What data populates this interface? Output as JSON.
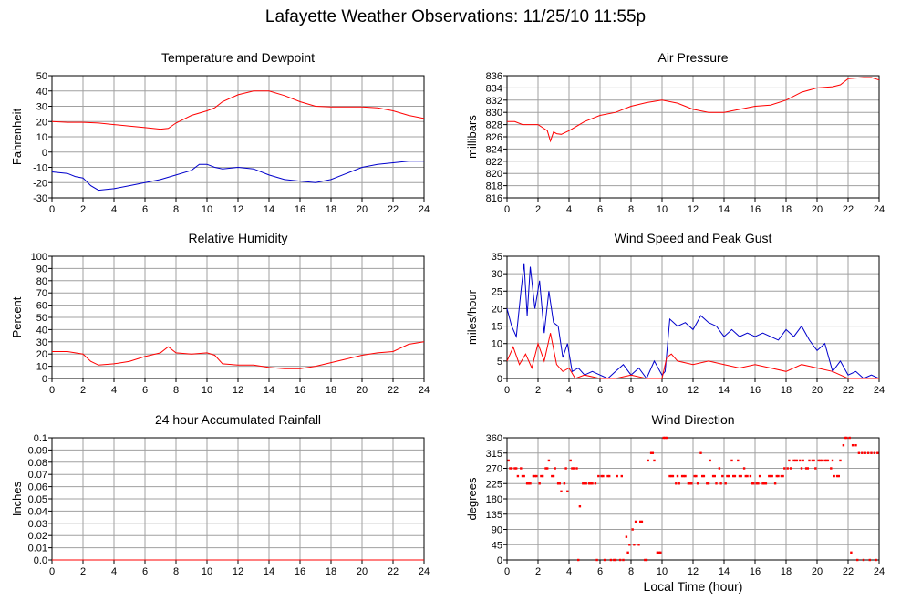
{
  "page": {
    "title": "Lafayette Weather Observations: 11/25/10 11:55p",
    "xaxis_title": "Local Time (hour)"
  },
  "colors": {
    "red": "#ff0000",
    "blue": "#0000cc",
    "grid": "#a0a0a0",
    "frame": "#000000"
  },
  "chart_data": [
    {
      "id": "temperature",
      "type": "line",
      "title": "Temperature and Dewpoint",
      "ylabel": "Fahrenheit",
      "xlim": [
        0,
        24
      ],
      "ylim": [
        -30,
        50
      ],
      "xticks": [
        0,
        2,
        4,
        6,
        8,
        10,
        12,
        14,
        16,
        18,
        20,
        22,
        24
      ],
      "yticks": [
        -30,
        -20,
        -10,
        0,
        10,
        20,
        30,
        40,
        50
      ],
      "grid": true,
      "series": [
        {
          "color": "#ff0000",
          "x": [
            0,
            1,
            2,
            3,
            4,
            5,
            6,
            7,
            7.5,
            8,
            9,
            10,
            10.5,
            11,
            12,
            13,
            14,
            15,
            16,
            17,
            18,
            19,
            20,
            21,
            22,
            23,
            24
          ],
          "y": [
            20,
            19.5,
            19.5,
            19,
            18,
            17,
            16,
            15,
            15.5,
            19,
            24,
            27,
            29,
            33,
            37.5,
            40,
            40,
            37,
            33,
            30,
            29.5,
            29.5,
            29.5,
            29,
            27,
            24,
            22
          ]
        },
        {
          "color": "#0000cc",
          "x": [
            0,
            1,
            1.5,
            2,
            2.5,
            3,
            4,
            5,
            6,
            7,
            8,
            9,
            9.5,
            10,
            10.5,
            11,
            12,
            13,
            14,
            15,
            16,
            17,
            18,
            19,
            20,
            21,
            22,
            23,
            24
          ],
          "y": [
            -13,
            -14,
            -16,
            -17,
            -22,
            -25,
            -24,
            -22,
            -20,
            -18,
            -15,
            -12,
            -8,
            -8,
            -10,
            -11,
            -10,
            -11,
            -15,
            -18,
            -19,
            -20,
            -18,
            -14,
            -10,
            -8,
            -7,
            -6,
            -6
          ]
        }
      ]
    },
    {
      "id": "pressure",
      "type": "line",
      "title": "Air Pressure",
      "ylabel": "millibars",
      "xlim": [
        0,
        24
      ],
      "ylim": [
        816,
        836
      ],
      "xticks": [
        0,
        2,
        4,
        6,
        8,
        10,
        12,
        14,
        16,
        18,
        20,
        22,
        24
      ],
      "yticks": [
        816,
        818,
        820,
        822,
        824,
        826,
        828,
        830,
        832,
        834,
        836
      ],
      "grid": true,
      "series": [
        {
          "color": "#ff0000",
          "x": [
            0,
            0.5,
            1,
            2,
            2.6,
            2.8,
            3,
            3.2,
            3.5,
            4,
            5,
            6,
            7,
            8,
            9,
            10,
            11,
            12,
            13,
            14,
            15,
            16,
            17,
            18,
            19,
            20,
            21,
            21.5,
            22,
            23,
            23.5,
            24
          ],
          "y": [
            828.5,
            828.5,
            828,
            828,
            827,
            825.3,
            826.8,
            826.5,
            826.4,
            827,
            828.5,
            829.5,
            830,
            831,
            831.6,
            832,
            831.5,
            830.5,
            830,
            830,
            830.5,
            831,
            831.2,
            832,
            833.3,
            834,
            834.2,
            834.5,
            835.5,
            835.7,
            835.7,
            835.3
          ]
        }
      ]
    },
    {
      "id": "humidity",
      "type": "line",
      "title": "Relative Humidity",
      "ylabel": "Percent",
      "xlim": [
        0,
        24
      ],
      "ylim": [
        0,
        100
      ],
      "xticks": [
        0,
        2,
        4,
        6,
        8,
        10,
        12,
        14,
        16,
        18,
        20,
        22,
        24
      ],
      "yticks": [
        0,
        10,
        20,
        30,
        40,
        50,
        60,
        70,
        80,
        90,
        100
      ],
      "grid": true,
      "series": [
        {
          "color": "#ff0000",
          "x": [
            0,
            1,
            2,
            2.5,
            3,
            4,
            5,
            6,
            7,
            7.5,
            8,
            9,
            10,
            10.5,
            11,
            12,
            13,
            14,
            15,
            16,
            17,
            18,
            19,
            20,
            21,
            22,
            23,
            24
          ],
          "y": [
            22,
            22,
            20,
            14,
            11,
            12,
            14,
            18,
            21,
            26,
            21,
            20,
            21,
            19,
            12,
            11,
            11,
            9,
            8,
            8,
            10,
            13,
            16,
            19,
            21,
            22,
            28,
            30
          ]
        }
      ]
    },
    {
      "id": "wind",
      "type": "line",
      "title": "Wind Speed and Peak Gust",
      "ylabel": "miles/hour",
      "xlim": [
        0,
        24
      ],
      "ylim": [
        0,
        35
      ],
      "xticks": [
        0,
        2,
        4,
        6,
        8,
        10,
        12,
        14,
        16,
        18,
        20,
        22,
        24
      ],
      "yticks": [
        0,
        5,
        10,
        15,
        20,
        25,
        30,
        35
      ],
      "grid": true,
      "series": [
        {
          "color": "#0000cc",
          "x": [
            0,
            0.3,
            0.6,
            0.9,
            1.1,
            1.3,
            1.5,
            1.8,
            2.1,
            2.4,
            2.7,
            3,
            3.3,
            3.6,
            3.9,
            4.2,
            4.6,
            5,
            5.5,
            6,
            6.5,
            7,
            7.5,
            8,
            8.5,
            9,
            9.5,
            10,
            10.2,
            10.5,
            11,
            11.5,
            12,
            12.5,
            13,
            13.5,
            14,
            14.5,
            15,
            15.5,
            16,
            16.5,
            17,
            17.5,
            18,
            18.5,
            19,
            19.5,
            20,
            20.5,
            21,
            21.5,
            22,
            22.5,
            23,
            23.5,
            24
          ],
          "y": [
            20,
            15,
            12,
            25,
            33,
            18,
            32,
            20,
            28,
            13,
            25,
            16,
            15,
            6,
            10,
            2,
            3,
            1,
            2,
            1,
            0,
            2,
            4,
            1,
            3,
            0,
            5,
            1,
            2,
            17,
            15,
            16,
            14,
            18,
            16,
            15,
            12,
            14,
            12,
            13,
            12,
            13,
            12,
            11,
            14,
            12,
            15,
            11,
            8,
            10,
            2,
            5,
            1,
            2,
            0,
            1,
            0
          ]
        },
        {
          "color": "#ff0000",
          "x": [
            0,
            0.4,
            0.8,
            1.2,
            1.6,
            2,
            2.4,
            2.8,
            3.2,
            3.6,
            4,
            4.4,
            5,
            6,
            7,
            8,
            9,
            10,
            10.3,
            10.6,
            11,
            12,
            13,
            14,
            15,
            16,
            17,
            18,
            19,
            20,
            21,
            22,
            23,
            24
          ],
          "y": [
            5,
            9,
            4,
            7,
            3,
            10,
            5,
            13,
            4,
            2,
            3,
            0,
            1,
            0,
            0,
            1,
            0,
            0,
            6,
            7,
            5,
            4,
            5,
            4,
            3,
            4,
            3,
            2,
            4,
            3,
            2,
            0,
            0,
            0
          ]
        }
      ]
    },
    {
      "id": "rainfall",
      "type": "line",
      "title": "24 hour Accumulated Rainfall",
      "ylabel": "Inches",
      "xlim": [
        0,
        24
      ],
      "ylim": [
        0,
        0.1
      ],
      "xticks": [
        0,
        2,
        4,
        6,
        8,
        10,
        12,
        14,
        16,
        18,
        20,
        22,
        24
      ],
      "yticks": [
        "0.0",
        "0.01",
        "0.02",
        "0.03",
        "0.04",
        "0.05",
        "0.06",
        "0.07",
        "0.08",
        "0.09",
        "0.1"
      ],
      "grid": true,
      "series": [
        {
          "color": "#ff0000",
          "x": [
            0,
            24
          ],
          "y": [
            0,
            0
          ]
        }
      ]
    },
    {
      "id": "direction",
      "type": "scatter",
      "title": "Wind Direction",
      "ylabel": "degrees",
      "xlim": [
        0,
        24
      ],
      "ylim": [
        0,
        360
      ],
      "xticks": [
        0,
        2,
        4,
        6,
        8,
        10,
        12,
        14,
        16,
        18,
        20,
        22,
        24
      ],
      "yticks": [
        0,
        45,
        90,
        135,
        180,
        225,
        270,
        315,
        360
      ],
      "grid": true,
      "series": [
        {
          "color": "#ff0000",
          "x": [
            0.1,
            0.3,
            0.5,
            0.7,
            0.9,
            1.1,
            1.3,
            1.5,
            1.7,
            1.9,
            2.1,
            2.3,
            2.5,
            2.7,
            2.9,
            3.1,
            3.3,
            3.5,
            3.7,
            3.9,
            4.1,
            4.3,
            4.5,
            4.7,
            4.9,
            5.1,
            5.3,
            5.5,
            5.7,
            5.9,
            6.1,
            6.3,
            6.5,
            6.7,
            6.9,
            7.1,
            7.3,
            7.5,
            7.7,
            7.9,
            8.1,
            8.3,
            8.5,
            8.7,
            8.9,
            9.1,
            9.3,
            9.5,
            9.7,
            9.9,
            10.1,
            10.3,
            10.5,
            10.7,
            10.9,
            11.1,
            11.3,
            11.5,
            11.7,
            11.9,
            12.1,
            12.3,
            12.5,
            12.7,
            12.9,
            13.1,
            13.3,
            13.5,
            13.7,
            13.9,
            14.1,
            14.3,
            14.5,
            14.7,
            14.9,
            15.1,
            15.3,
            15.5,
            15.7,
            15.9,
            16.1,
            16.3,
            16.5,
            16.7,
            16.9,
            17.1,
            17.3,
            17.5,
            17.7,
            17.9,
            18.1,
            18.3,
            18.5,
            18.7,
            18.9,
            19.1,
            19.3,
            19.5,
            19.7,
            19.9,
            20.1,
            20.3,
            20.5,
            20.7,
            20.9,
            21.1,
            21.3,
            21.5,
            21.7,
            21.9,
            22.1,
            22.3,
            22.5,
            22.7,
            22.9,
            23.1,
            23.3,
            23.5,
            23.7,
            23.9
          ],
          "y": [
            293,
            270,
            270,
            247,
            270,
            247,
            225,
            225,
            247,
            247,
            225,
            247,
            270,
            293,
            247,
            270,
            225,
            202,
            225,
            202,
            293,
            270,
            270,
            158,
            225,
            225,
            225,
            225,
            225,
            247,
            247,
            0,
            247,
            0,
            0,
            247,
            0,
            0,
            68,
            45,
            90,
            113,
            45,
            113,
            0,
            293,
            315,
            293,
            22,
            22,
            360,
            360,
            247,
            247,
            225,
            225,
            247,
            247,
            225,
            225,
            247,
            225,
            315,
            247,
            225,
            293,
            247,
            225,
            270,
            247,
            225,
            247,
            293,
            247,
            293,
            247,
            270,
            247,
            247,
            225,
            225,
            247,
            225,
            225,
            247,
            247,
            225,
            247,
            247,
            270,
            270,
            270,
            293,
            293,
            293,
            293,
            270,
            293,
            293,
            270,
            293,
            293,
            293,
            293,
            270,
            247,
            247,
            293,
            338,
            360,
            360,
            338,
            338,
            315,
            315,
            315,
            315,
            315,
            315,
            315
          ]
        },
        {
          "color": "#ff0000",
          "x": [
            0.2,
            0.6,
            1,
            1.4,
            1.8,
            2.2,
            2.6,
            3,
            3.4,
            3.8,
            4.2,
            4.6,
            5,
            5.4,
            5.8,
            6.2,
            6.6,
            7,
            7.4,
            7.8,
            8.2,
            8.6,
            9,
            9.4,
            9.8,
            10.2,
            10.6,
            11,
            11.4,
            11.8,
            12.2,
            12.6,
            13,
            13.4,
            13.8,
            14.2,
            14.6,
            15,
            15.4,
            15.8,
            16.2,
            16.6,
            17,
            17.4,
            17.8,
            18.2,
            18.6,
            19,
            19.4,
            19.8,
            20.2,
            20.6,
            21,
            21.4,
            21.8,
            22.2,
            22.6,
            23,
            23.4,
            23.8
          ],
          "y": [
            270,
            270,
            247,
            225,
            247,
            247,
            270,
            247,
            225,
            270,
            270,
            0,
            225,
            225,
            0,
            247,
            247,
            0,
            247,
            22,
            45,
            113,
            0,
            315,
            22,
            360,
            247,
            247,
            247,
            225,
            247,
            247,
            225,
            247,
            225,
            247,
            247,
            247,
            247,
            225,
            225,
            225,
            247,
            247,
            247,
            293,
            293,
            270,
            270,
            293,
            293,
            293,
            293,
            247,
            360,
            22,
            0,
            0,
            0,
            0
          ]
        }
      ]
    }
  ]
}
